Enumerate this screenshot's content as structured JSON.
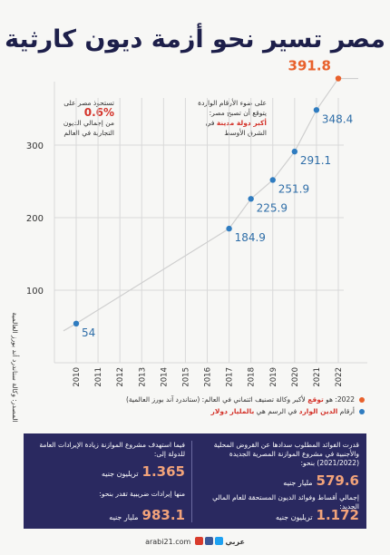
{
  "title": "مصر تسير نحو أزمة ديون كارثية",
  "side_source": "المصدر: وكالة ستاندرد أند بورز العالمية",
  "note_left": {
    "line1": "تستحوذ مصر على",
    "pct": "0.6%",
    "line2": "من إجمالي الديون",
    "line3": "التجارية في العالم"
  },
  "note_right": {
    "line1": "على ضوء الأرقام الواردة",
    "line2": "يتوقع أن تصبح مصر:",
    "highlight": "أكبر دولة مدينة",
    "hl_tail": "في",
    "line3": "الشرق الأوسط"
  },
  "chart_data": {
    "type": "line",
    "x": [
      "2010",
      "2011",
      "2012",
      "2013",
      "2014",
      "2015",
      "2016",
      "2017",
      "2018",
      "2019",
      "2020",
      "2021",
      "2022"
    ],
    "series": [
      {
        "values": [
          54,
          null,
          null,
          null,
          null,
          null,
          null,
          184.9,
          225.9,
          251.9,
          291.1,
          348.4,
          391.8
        ],
        "labels": [
          "54",
          "",
          "",
          "",
          "",
          "",
          "",
          "184.9",
          "225.9",
          "251.9",
          "291.1",
          "348.4",
          "391.8"
        ]
      }
    ],
    "y_ticks": [
      "100",
      "200",
      "300"
    ],
    "ylim": [
      0,
      400
    ],
    "highlight_last": true,
    "colors": {
      "line": "#cfcfcf",
      "point": "#2f7cc0",
      "last_point": "#e8612c",
      "label": "#2f6ea8",
      "last_label": "#e8612c",
      "axis": "#d9d9d9"
    }
  },
  "legend": {
    "row1_a": "2022: هو",
    "row1_b": "توقع",
    "row1_c": "لأكبر وكالة تصنيف ائتماني في العالم: (ستاندرد آند بورز العالمية)",
    "row2_a": "أرقام",
    "row2_b": "الدين الوارد",
    "row2_c": "في الرسم هي",
    "row2_d": "بالمليار دولار"
  },
  "panel": {
    "right_text1": "قدرت الفوائد المطلوب سدادها عن القروض المحلية والأجنبية في مشروع الموازنة المصرية الجديدة (2021/2022) بنحو:",
    "right_num1": "579.6",
    "right_unit1": "مليار جنيه",
    "right_text2": "إجمالي أقساط وفوائد الديون المستحقة للعام المالي الجديد:",
    "right_num2": "1.172",
    "right_unit2": "تريليون جنيه",
    "left_text1": "فيما استهدف مشروع الموازنة زيادة الإيرادات العامة للدولة إلى:",
    "left_num1": "1.365",
    "left_unit1": "تريليون جنيه",
    "left_text2": "منها إيرادات ضريبية تقدر بنحو:",
    "left_num2": "983.1",
    "left_unit2": "مليار جنيه"
  },
  "footer": {
    "site": "arabi21.com",
    "brand": "عربي"
  }
}
